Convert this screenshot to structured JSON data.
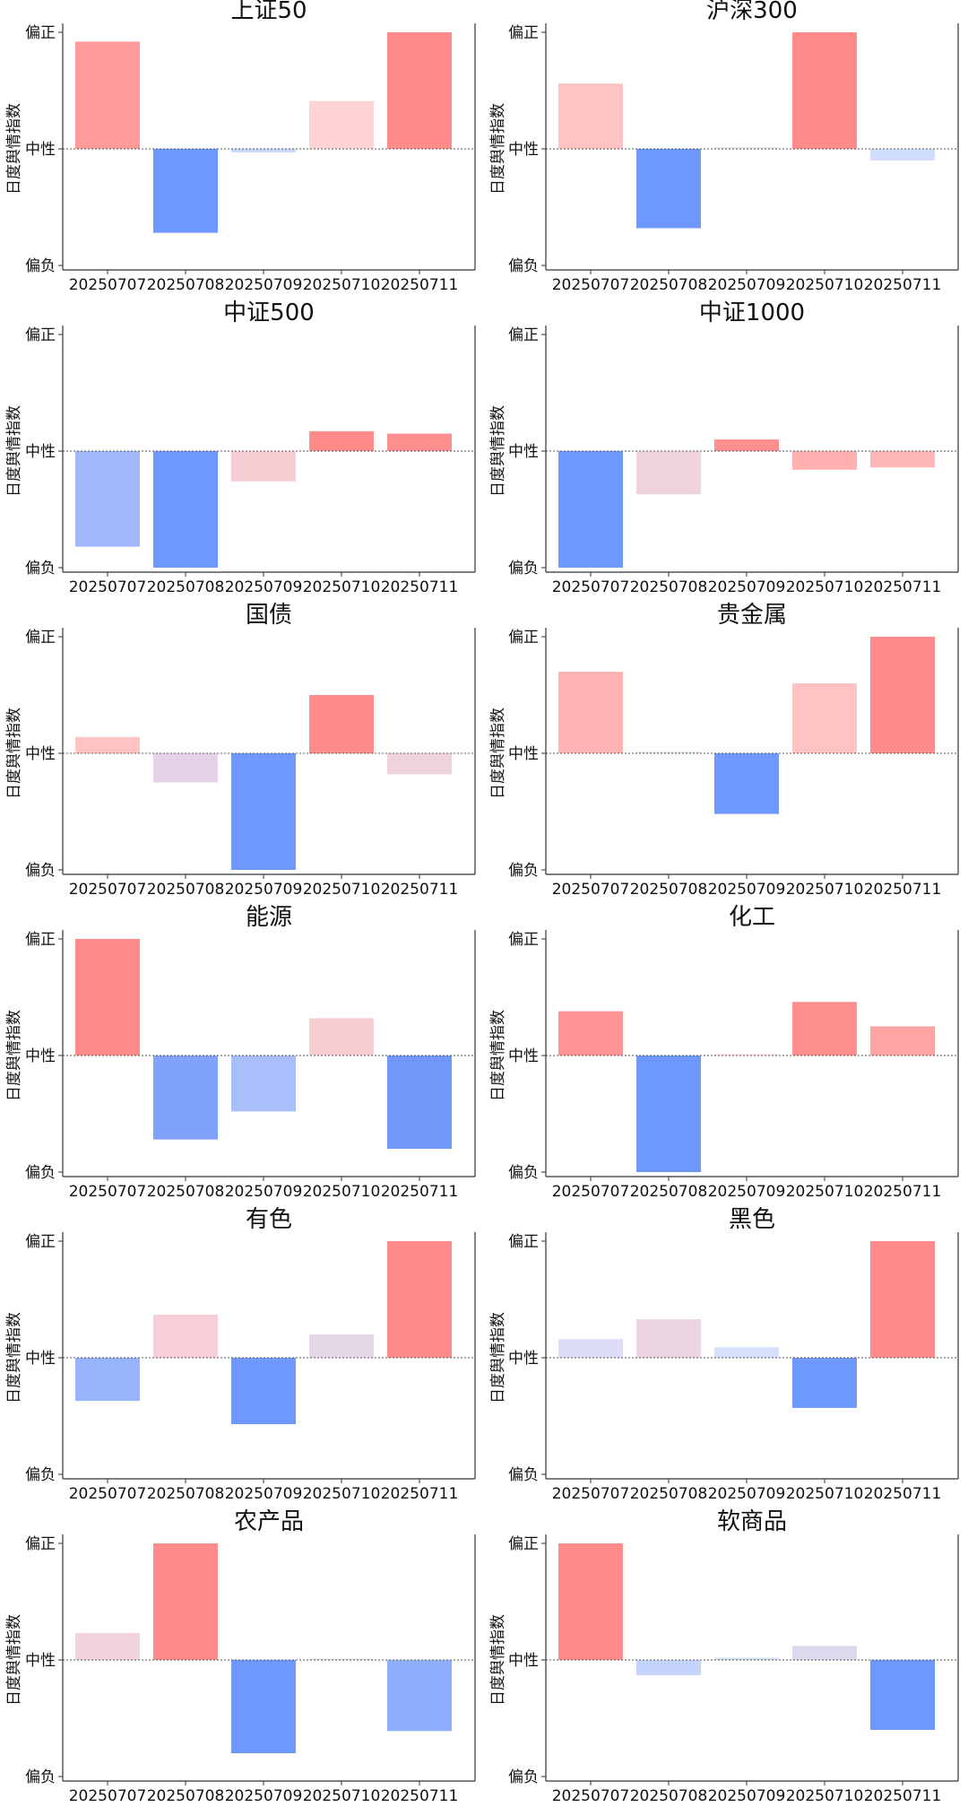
{
  "chart_data": [
    {
      "type": "bar",
      "title": "上证50",
      "categories": [
        "20250707",
        "20250708",
        "20250709",
        "20250710",
        "20250711"
      ],
      "values": [
        0.92,
        -0.72,
        -0.03,
        0.41,
        1.0
      ],
      "colors": [
        "#ff9a9a",
        "#6e98fb",
        "#c8d6fb",
        "#ffd3d3",
        "#ff8b8b"
      ],
      "ylim": [
        -1,
        1
      ],
      "yticks": [
        "偏负",
        "中性",
        "偏正"
      ],
      "ylabel": "日度舆情指数"
    },
    {
      "type": "bar",
      "title": "沪深300",
      "categories": [
        "20250707",
        "20250708",
        "20250709",
        "20250710",
        "20250711"
      ],
      "values": [
        0.56,
        -0.68,
        0.0,
        1.0,
        -0.1
      ],
      "colors": [
        "#ffc3c3",
        "#6e98fb",
        "#dddddd",
        "#ff8b8b",
        "#d0defb"
      ],
      "ylim": [
        -1,
        1
      ],
      "yticks": [
        "偏负",
        "中性",
        "偏正"
      ],
      "ylabel": "日度舆情指数"
    },
    {
      "type": "bar",
      "title": "中证500",
      "categories": [
        "20250707",
        "20250708",
        "20250709",
        "20250710",
        "20250711"
      ],
      "values": [
        -0.82,
        -1.0,
        -0.26,
        0.17,
        0.15
      ],
      "colors": [
        "#a0b8fb",
        "#6e98fb",
        "#f8cdd3",
        "#ff8b8b",
        "#ff8f8f"
      ],
      "ylim": [
        -1,
        1
      ],
      "yticks": [
        "偏负",
        "中性",
        "偏正"
      ],
      "ylabel": "日度舆情指数"
    },
    {
      "type": "bar",
      "title": "中证1000",
      "categories": [
        "20250707",
        "20250708",
        "20250709",
        "20250710",
        "20250711"
      ],
      "values": [
        -1.0,
        -0.37,
        0.1,
        -0.16,
        -0.14
      ],
      "colors": [
        "#6e98fb",
        "#eed3dd",
        "#ff8f8f",
        "#ffb0b0",
        "#ffb6b6"
      ],
      "ylim": [
        -1,
        1
      ],
      "yticks": [
        "偏负",
        "中性",
        "偏正"
      ],
      "ylabel": "日度舆情指数"
    },
    {
      "type": "bar",
      "title": "国债",
      "categories": [
        "20250707",
        "20250708",
        "20250709",
        "20250710",
        "20250711"
      ],
      "values": [
        0.14,
        -0.25,
        -1.0,
        0.5,
        -0.18
      ],
      "colors": [
        "#ffc3c3",
        "#e4d3e6",
        "#6e98fb",
        "#ff8b8b",
        "#efd3dd"
      ],
      "ylim": [
        -1,
        1
      ],
      "yticks": [
        "偏负",
        "中性",
        "偏正"
      ],
      "ylabel": "日度舆情指数"
    },
    {
      "type": "bar",
      "title": "贵金属",
      "categories": [
        "20250707",
        "20250708",
        "20250709",
        "20250710",
        "20250711"
      ],
      "values": [
        0.7,
        0.0,
        -0.52,
        0.6,
        1.0
      ],
      "colors": [
        "#ffb3b3",
        "#dddddd",
        "#6e98fb",
        "#ffc3c3",
        "#ff8b8b"
      ],
      "ylim": [
        -1,
        1
      ],
      "yticks": [
        "偏负",
        "中性",
        "偏正"
      ],
      "ylabel": "日度舆情指数"
    },
    {
      "type": "bar",
      "title": "能源",
      "categories": [
        "20250707",
        "20250708",
        "20250709",
        "20250710",
        "20250711"
      ],
      "values": [
        1.0,
        -0.72,
        -0.48,
        0.32,
        -0.8
      ],
      "colors": [
        "#ff8b8b",
        "#7fa2fb",
        "#a9bffb",
        "#f8cdd3",
        "#7098fb"
      ],
      "ylim": [
        -1,
        1
      ],
      "yticks": [
        "偏负",
        "中性",
        "偏正"
      ],
      "ylabel": "日度舆情指数"
    },
    {
      "type": "bar",
      "title": "化工",
      "categories": [
        "20250707",
        "20250708",
        "20250709",
        "20250710",
        "20250711"
      ],
      "values": [
        0.38,
        -1.0,
        0.01,
        0.46,
        0.25
      ],
      "colors": [
        "#ff9292",
        "#6e98fb",
        "#ffd6d6",
        "#ff8f8f",
        "#ffa3a3"
      ],
      "ylim": [
        -1,
        1
      ],
      "yticks": [
        "偏负",
        "中性",
        "偏正"
      ],
      "ylabel": "日度舆情指数"
    },
    {
      "type": "bar",
      "title": "有色",
      "categories": [
        "20250707",
        "20250708",
        "20250709",
        "20250710",
        "20250711"
      ],
      "values": [
        -0.37,
        0.37,
        -0.57,
        0.2,
        1.0
      ],
      "colors": [
        "#97b3fb",
        "#f6cfd8",
        "#6e98fb",
        "#e5d6e8",
        "#ff8b8b"
      ],
      "ylim": [
        -1,
        1
      ],
      "yticks": [
        "偏负",
        "中性",
        "偏正"
      ],
      "ylabel": "日度舆情指数"
    },
    {
      "type": "bar",
      "title": "黑色",
      "categories": [
        "20250707",
        "20250708",
        "20250709",
        "20250710",
        "20250711"
      ],
      "values": [
        0.16,
        0.33,
        0.09,
        -0.43,
        1.0
      ],
      "colors": [
        "#dcdcf7",
        "#ebd3e0",
        "#d5e0fb",
        "#6e98fb",
        "#ff8b8b"
      ],
      "ylim": [
        -1,
        1
      ],
      "yticks": [
        "偏负",
        "中性",
        "偏正"
      ],
      "ylabel": "日度舆情指数"
    },
    {
      "type": "bar",
      "title": "农产品",
      "categories": [
        "20250707",
        "20250708",
        "20250709",
        "20250710",
        "20250711"
      ],
      "values": [
        0.23,
        1.0,
        -0.8,
        0.0,
        -0.61
      ],
      "colors": [
        "#f0d3de",
        "#ff8b8b",
        "#6e98fb",
        "#dddddd",
        "#8eadfb"
      ],
      "ylim": [
        -1,
        1
      ],
      "yticks": [
        "偏负",
        "中性",
        "偏正"
      ],
      "ylabel": "日度舆情指数"
    },
    {
      "type": "bar",
      "title": "软商品",
      "categories": [
        "20250707",
        "20250708",
        "20250709",
        "20250710",
        "20250711"
      ],
      "values": [
        1.0,
        -0.13,
        0.02,
        0.12,
        -0.6
      ],
      "colors": [
        "#ff8b8b",
        "#c3d3fb",
        "#d8e2f7",
        "#dcd9ef",
        "#6e98fb"
      ],
      "ylim": [
        -1,
        1
      ],
      "yticks": [
        "偏负",
        "中性",
        "偏正"
      ],
      "ylabel": "日度舆情指数"
    }
  ]
}
